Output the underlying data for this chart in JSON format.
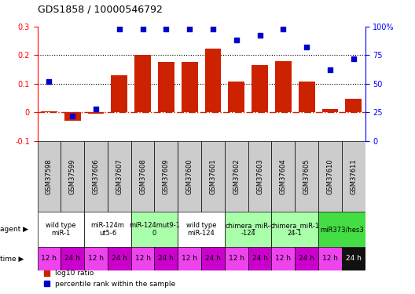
{
  "title": "GDS1858 / 10000546792",
  "samples": [
    "GSM37598",
    "GSM37599",
    "GSM37606",
    "GSM37607",
    "GSM37608",
    "GSM37609",
    "GSM37600",
    "GSM37601",
    "GSM37602",
    "GSM37603",
    "GSM37604",
    "GSM37605",
    "GSM37610",
    "GSM37611"
  ],
  "log10_ratio": [
    0.005,
    -0.028,
    -0.005,
    0.13,
    0.2,
    0.175,
    0.177,
    0.223,
    0.107,
    0.165,
    0.178,
    0.107,
    0.012,
    0.048
  ],
  "percentile_rank": [
    52,
    22,
    28,
    98,
    98,
    98,
    98,
    98,
    88,
    92,
    98,
    82,
    62,
    72
  ],
  "bar_color": "#cc2200",
  "dot_color": "#0000cc",
  "ylim_left": [
    -0.1,
    0.3
  ],
  "ylim_right": [
    0,
    100
  ],
  "yticks_left": [
    -0.1,
    0.0,
    0.1,
    0.2,
    0.3
  ],
  "ytick_labels_left": [
    "-0.1",
    "0",
    "0.1",
    "0.2",
    "0.3"
  ],
  "yticks_right": [
    0,
    25,
    50,
    75,
    100
  ],
  "ytick_labels_right": [
    "0",
    "25",
    "50",
    "75",
    "100%"
  ],
  "hlines": [
    0.1,
    0.2
  ],
  "zero_line_color": "#cc2200",
  "agent_groups": [
    {
      "label": "wild type\nmiR-1",
      "start": 0,
      "end": 2,
      "color": "#ffffff"
    },
    {
      "label": "miR-124m\nut5-6",
      "start": 2,
      "end": 4,
      "color": "#ffffff"
    },
    {
      "label": "miR-124mut9-1\n0",
      "start": 4,
      "end": 6,
      "color": "#aaffaa"
    },
    {
      "label": "wild type\nmiR-124",
      "start": 6,
      "end": 8,
      "color": "#ffffff"
    },
    {
      "label": "chimera_miR-\n-124",
      "start": 8,
      "end": 10,
      "color": "#aaffaa"
    },
    {
      "label": "chimera_miR-1\n24-1",
      "start": 10,
      "end": 12,
      "color": "#aaffaa"
    },
    {
      "label": "miR373/hes3",
      "start": 12,
      "end": 14,
      "color": "#44dd44"
    }
  ],
  "time_labels": [
    "12 h",
    "24 h",
    "12 h",
    "24 h",
    "12 h",
    "24 h",
    "12 h",
    "24 h",
    "12 h",
    "24 h",
    "12 h",
    "24 h",
    "12 h",
    "24 h"
  ],
  "time_bg_colors": [
    "#ee44ee",
    "#cc00cc",
    "#ee44ee",
    "#cc00cc",
    "#ee44ee",
    "#cc00cc",
    "#ee44ee",
    "#cc00cc",
    "#ee44ee",
    "#cc00cc",
    "#ee44ee",
    "#cc00cc",
    "#ee44ee",
    "#111111"
  ],
  "time_text_colors": [
    "black",
    "black",
    "black",
    "black",
    "black",
    "black",
    "black",
    "black",
    "black",
    "black",
    "black",
    "black",
    "black",
    "white"
  ],
  "legend_red": "log10 ratio",
  "legend_blue": "percentile rank within the sample",
  "header_bg": "#cccccc",
  "tick_label_fontsize": 7,
  "sample_fontsize": 6,
  "agent_fontsize": 6,
  "time_fontsize": 6.5,
  "title_fontsize": 9
}
